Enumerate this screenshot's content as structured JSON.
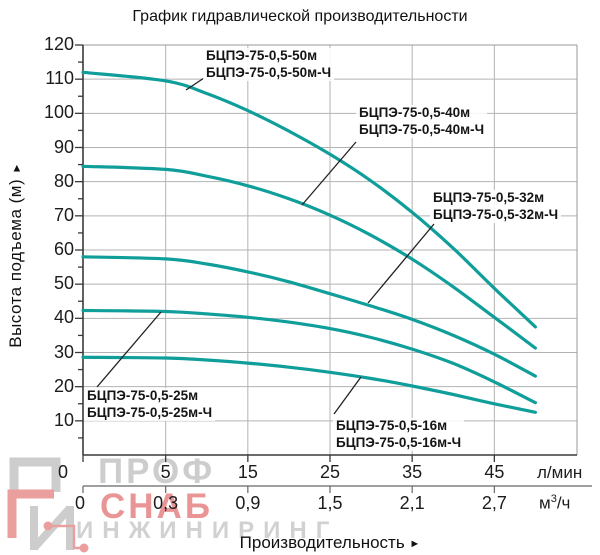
{
  "title": "График гидравлической производительности",
  "chart_data": {
    "type": "line",
    "title": "График гидравлической производительности",
    "x_axis": {
      "title": "Производительность",
      "arrow": "►",
      "primary": {
        "unit": "л/мин",
        "tick_values": [
          0,
          5,
          15,
          25,
          35,
          45
        ],
        "tick_labels": [
          "0",
          "5",
          "15",
          "25",
          "35",
          "45"
        ]
      },
      "secondary": {
        "unit_base": "м",
        "unit_sup": "3",
        "unit_rest": "/ч",
        "tick_labels": [
          "0",
          "0,3",
          "0,9",
          "1,5",
          "2,1",
          "2,7"
        ]
      },
      "range_lmin": [
        0,
        55
      ]
    },
    "y_axis": {
      "title": "Высота подъема (м)",
      "arrow": "►",
      "range": [
        0,
        120
      ],
      "tick_step": 10,
      "minor_tick_step": 5,
      "tick_labels": [
        "10",
        "20",
        "30",
        "40",
        "50",
        "60",
        "70",
        "80",
        "90",
        "100",
        "110",
        "120"
      ]
    },
    "grid": "on",
    "legend": "labels-on-chart",
    "q_lmin": [
      0,
      5,
      10,
      15,
      20,
      25,
      30,
      35,
      40,
      45,
      50
    ],
    "series": [
      {
        "name": "БЦПЭ-75-0,5-50м",
        "name_ch": "БЦПЭ-75-0,5-50м-Ч",
        "head_m": [
          112,
          109.5,
          105.8,
          100.8,
          94.8,
          88,
          80.2,
          71,
          60.5,
          48.8,
          37.5
        ]
      },
      {
        "name": "БЦПЭ-75-0,5-40м",
        "name_ch": "БЦПЭ-75-0,5-40м-Ч",
        "head_m": [
          84.5,
          83.6,
          81.6,
          78.8,
          75,
          70.2,
          64.3,
          57.3,
          49.2,
          40.3,
          31.3
        ]
      },
      {
        "name": "БЦПЭ-75-0,5-32м",
        "name_ch": "БЦПЭ-75-0,5-32м-Ч",
        "head_m": [
          58,
          57.4,
          55.9,
          53.6,
          50.7,
          47.2,
          43.6,
          39.7,
          35,
          29.5,
          23.1
        ]
      },
      {
        "name": "БЦПЭ-75-0,5-25м",
        "name_ch": "БЦПЭ-75-0,5-25м-Ч",
        "head_m": [
          42.3,
          42,
          41.3,
          40.3,
          38.9,
          37,
          34.4,
          31,
          26.8,
          21.4,
          15.3
        ]
      },
      {
        "name": "БЦПЭ-75-0,5-16м",
        "name_ch": "БЦПЭ-75-0,5-16м-Ч",
        "head_m": [
          28.6,
          28.4,
          27.8,
          26.9,
          25.7,
          24.2,
          22.4,
          20.2,
          17.7,
          15,
          12.5
        ]
      }
    ]
  },
  "annotations": [
    {
      "line1": "БЦПЭ-75-0,5-50м",
      "line2": "БЦПЭ-75-0,5-50м-Ч"
    },
    {
      "line1": "БЦПЭ-75-0,5-40м",
      "line2": "БЦПЭ-75-0,5-40м-Ч"
    },
    {
      "line1": "БЦПЭ-75-0,5-32м",
      "line2": "БЦПЭ-75-0,5-32м-Ч"
    },
    {
      "line1": "БЦПЭ-75-0,5-25м",
      "line2": "БЦПЭ-75-0,5-25м-Ч"
    },
    {
      "line1": "БЦПЭ-75-0,5-16м",
      "line2": "БЦПЭ-75-0,5-16м-Ч"
    }
  ],
  "watermark": {
    "word1": "ПРОФ",
    "word2": "СНАБ",
    "word3": "ИНЖИНИРИНГ"
  },
  "colors": {
    "curve": "#0f9e9a",
    "grid": "#b3b3b3",
    "axis": "#3a3a3a",
    "frame_light": "#999999",
    "axis_secondary": "#666666",
    "leader": "#222222",
    "annotation_text": "#141414",
    "watermark_gray": "#a5a5a5",
    "watermark_red": "#dc5050"
  }
}
